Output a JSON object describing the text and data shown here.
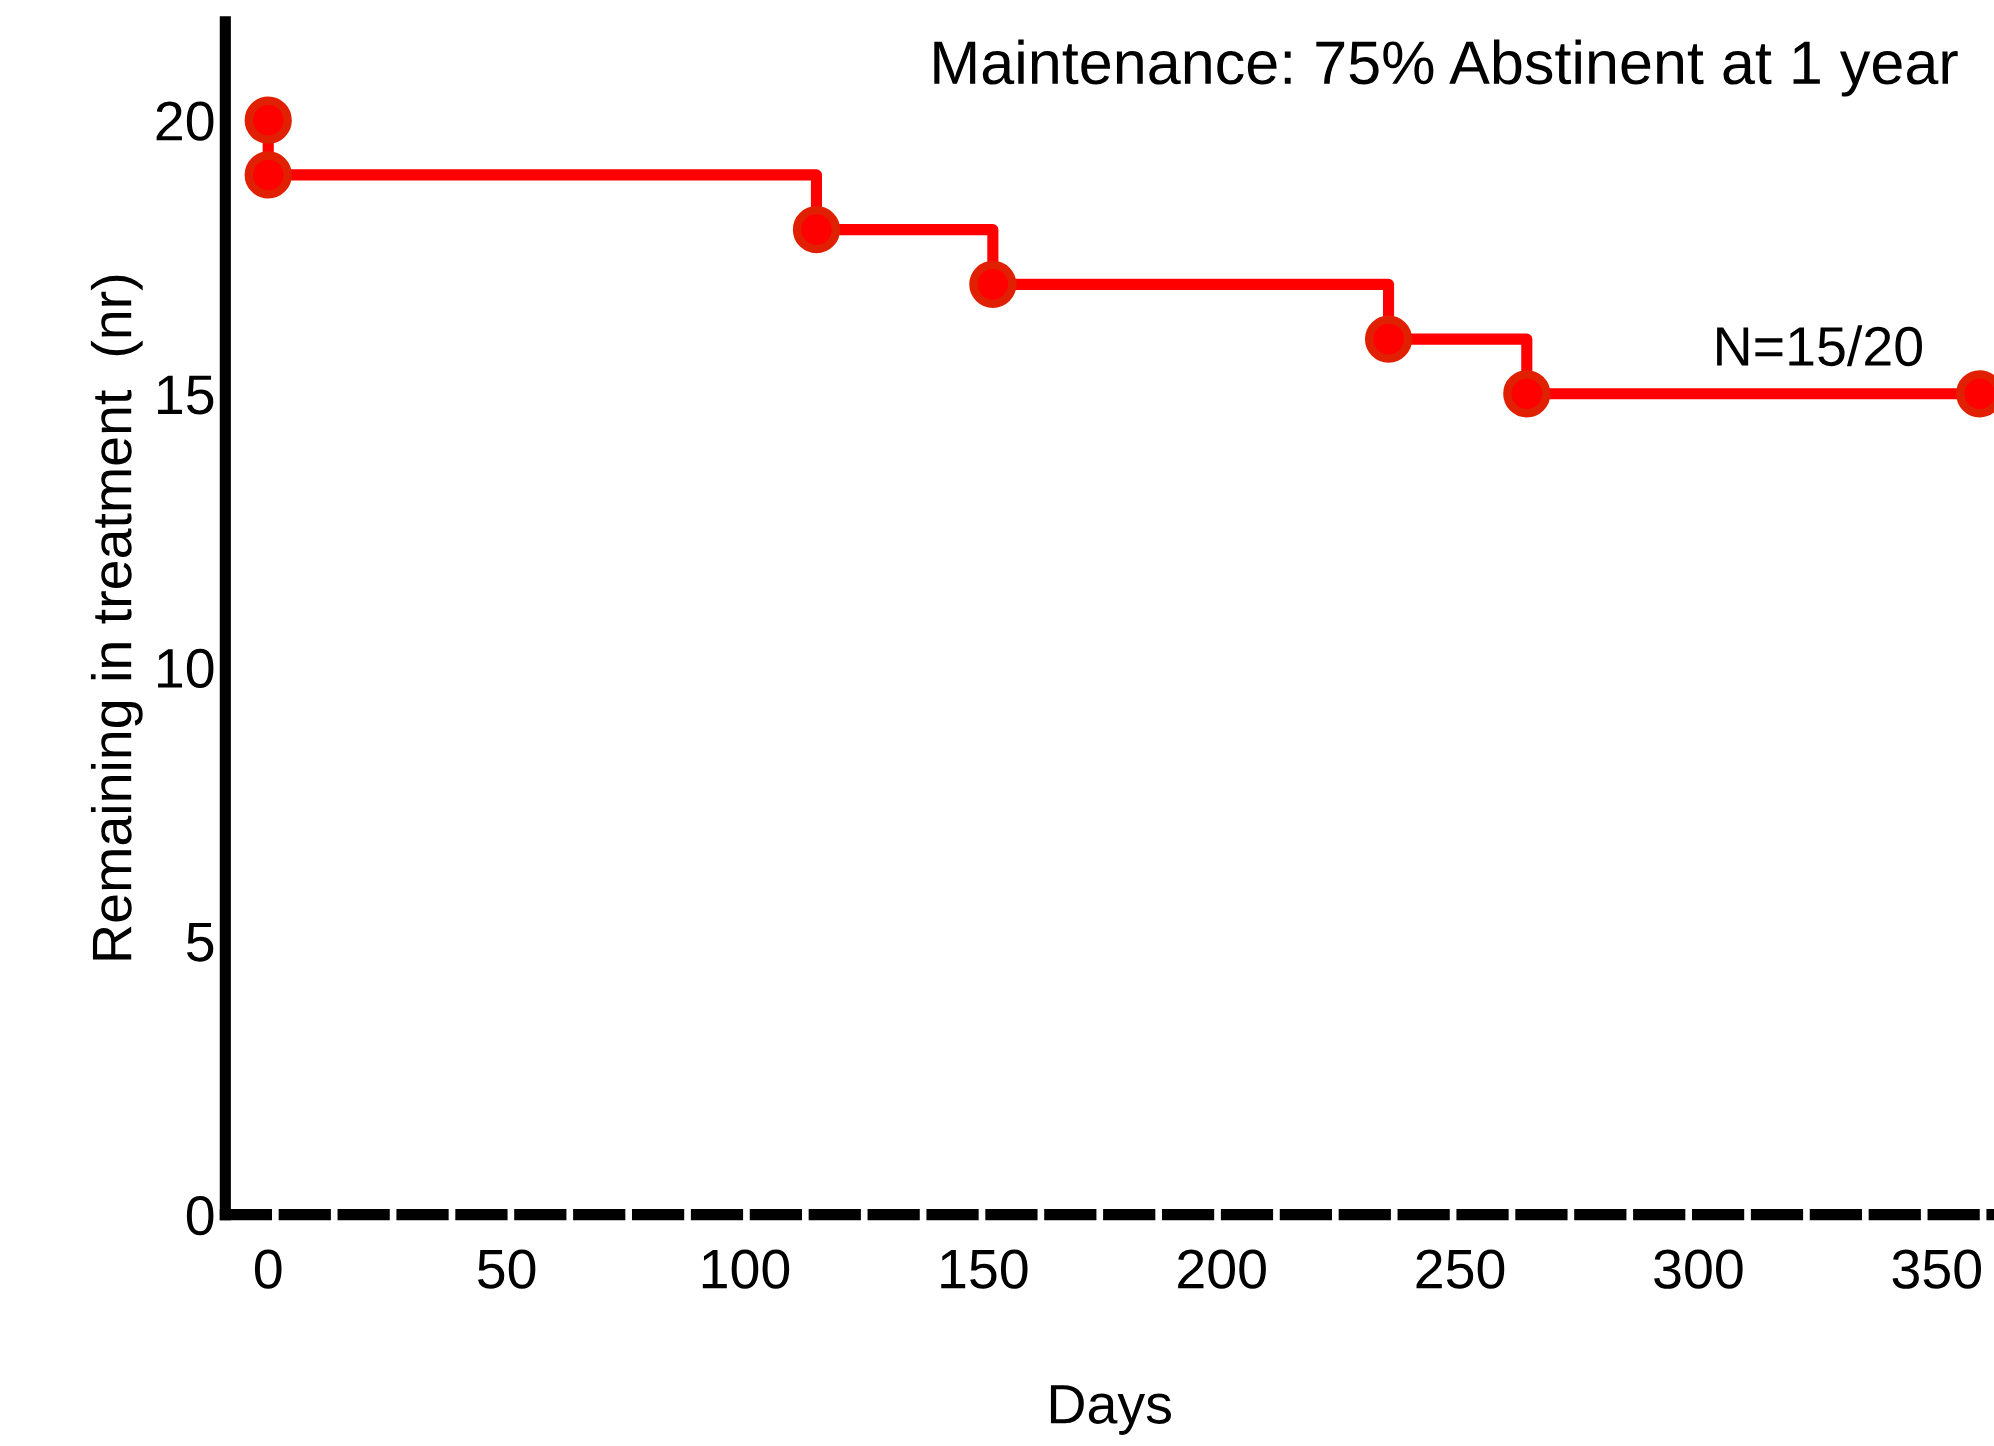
{
  "chart_data": {
    "type": "step",
    "title": "Maintenance: 75% Abstinent at 1 year",
    "xlabel": "Days",
    "ylabel": "Remaining in treatment  (nr)",
    "series": [
      {
        "color": "#ff0000",
        "x": [
          0,
          0,
          115,
          152,
          235,
          264,
          359
        ],
        "values": [
          20,
          19,
          18,
          17,
          16,
          15,
          15
        ]
      }
    ],
    "annotations": [
      {
        "text": "N=15/20",
        "x": 359,
        "y": 15
      }
    ],
    "xlim": [
      -9,
      362
    ],
    "xticks": [
      0,
      50,
      100,
      150,
      200,
      250,
      300,
      350
    ],
    "ylim": [
      0,
      21.8
    ],
    "yticks": [
      0,
      5,
      10,
      15,
      20
    ],
    "grid": false,
    "legend": false,
    "marker": "circle",
    "line_style": "solid"
  }
}
